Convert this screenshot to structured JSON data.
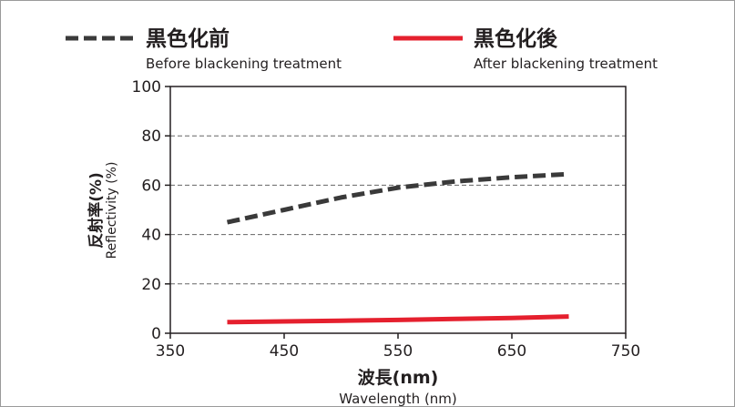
{
  "chart_data": {
    "type": "line",
    "xlabel_ja": "波長(nm)",
    "xlabel_en": "Wavelength (nm)",
    "ylabel_ja": "反射率(%)",
    "ylabel_en": "Reflectivity (%)",
    "xlim": [
      350,
      750
    ],
    "ylim": [
      0,
      100
    ],
    "xticks": [
      350,
      450,
      550,
      650,
      750
    ],
    "yticks": [
      0,
      20,
      40,
      60,
      80,
      100
    ],
    "grid": "horizontal-dashed",
    "legend_position": "top",
    "series": [
      {
        "name_ja": "黒色化前",
        "name_en": "Before blackening treatment",
        "style": "dashed",
        "color": "#3a3a3a",
        "x": [
          400,
          450,
          500,
          550,
          600,
          650,
          700
        ],
        "y": [
          45,
          50,
          55,
          59,
          61.5,
          63.2,
          64.5
        ]
      },
      {
        "name_ja": "黒色化後",
        "name_en": "After blackening treatment",
        "style": "solid",
        "color": "#e5202e",
        "x": [
          400,
          450,
          500,
          550,
          600,
          650,
          700
        ],
        "y": [
          4.5,
          4.8,
          5.1,
          5.4,
          5.8,
          6.2,
          6.8
        ]
      }
    ]
  }
}
